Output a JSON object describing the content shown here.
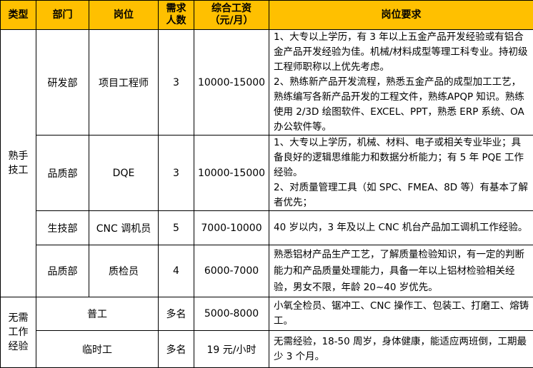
{
  "headers": {
    "type": "类型",
    "dept": "部门",
    "position": "岗位",
    "count": "需求人数",
    "salary": "综合工资（元/月）",
    "requirements": "岗位要求"
  },
  "groups": [
    {
      "type": "熟手技工",
      "rows": [
        {
          "dept": "研发部",
          "position": "项目工程师",
          "count": "3",
          "salary": "10000-15000",
          "requirements": "1、大专以上学历，有 3 年以上五金产品开发经验或有铝合金产品开发经验为佳。机械/材料成型等理工科专业。持初级工程师职称以上优先考虑。\n2、熟练新产品开发流程，熟悉五金产品的成型加工工艺，熟练编写各新产品开发的工程文件，熟练APQP 知识。熟练使用 2/3D 绘图软件、EXCEL、PPT，熟悉 ERP 系统、OA 办公软件等。"
        },
        {
          "dept": "品质部",
          "position": "DQE",
          "count": "3",
          "salary": "10000-15000",
          "requirements": "1、大专以上学历，机械、材料、电子或相关专业毕业；具备良好的逻辑思维能力和数据分析能力；有 5 年 PQE 工作经验。\n2、对质量管理工具（如 SPC、FMEA、8D 等）有基本了解者优先；"
        },
        {
          "dept": "生技部",
          "position": "CNC 调机员",
          "count": "5",
          "salary": "7000-10000",
          "requirements": "40 岁以内，3 年及以上 CNC 机台产品加工调机工作经验。"
        },
        {
          "dept": "品质部",
          "position": "质检员",
          "count": "4",
          "salary": "6000-7000",
          "requirements": "熟悉铝材产品生产工艺，了解质量检验知识，有一定的判断能力和产品质量处理能力，具备一年以上铝材检验相关经验，男女不限，年龄 20~40 岁优先。"
        }
      ]
    },
    {
      "type": "无需工作经验",
      "rows": [
        {
          "position": "普工",
          "count": "多名",
          "salary": "5000-8000",
          "requirements": "小氧全检员、锯冲工、CNC 操作工、包装工、打磨工、熔铸工。"
        },
        {
          "position": "临时工",
          "count": "多名",
          "salary": "19 元/小时",
          "requirements": "无需经验，18-50 周岁，身体健康，能适应两班倒，工期最少 3 个月。"
        }
      ]
    }
  ],
  "colors": {
    "header_bg": "#FFC000",
    "border": "#000000"
  }
}
